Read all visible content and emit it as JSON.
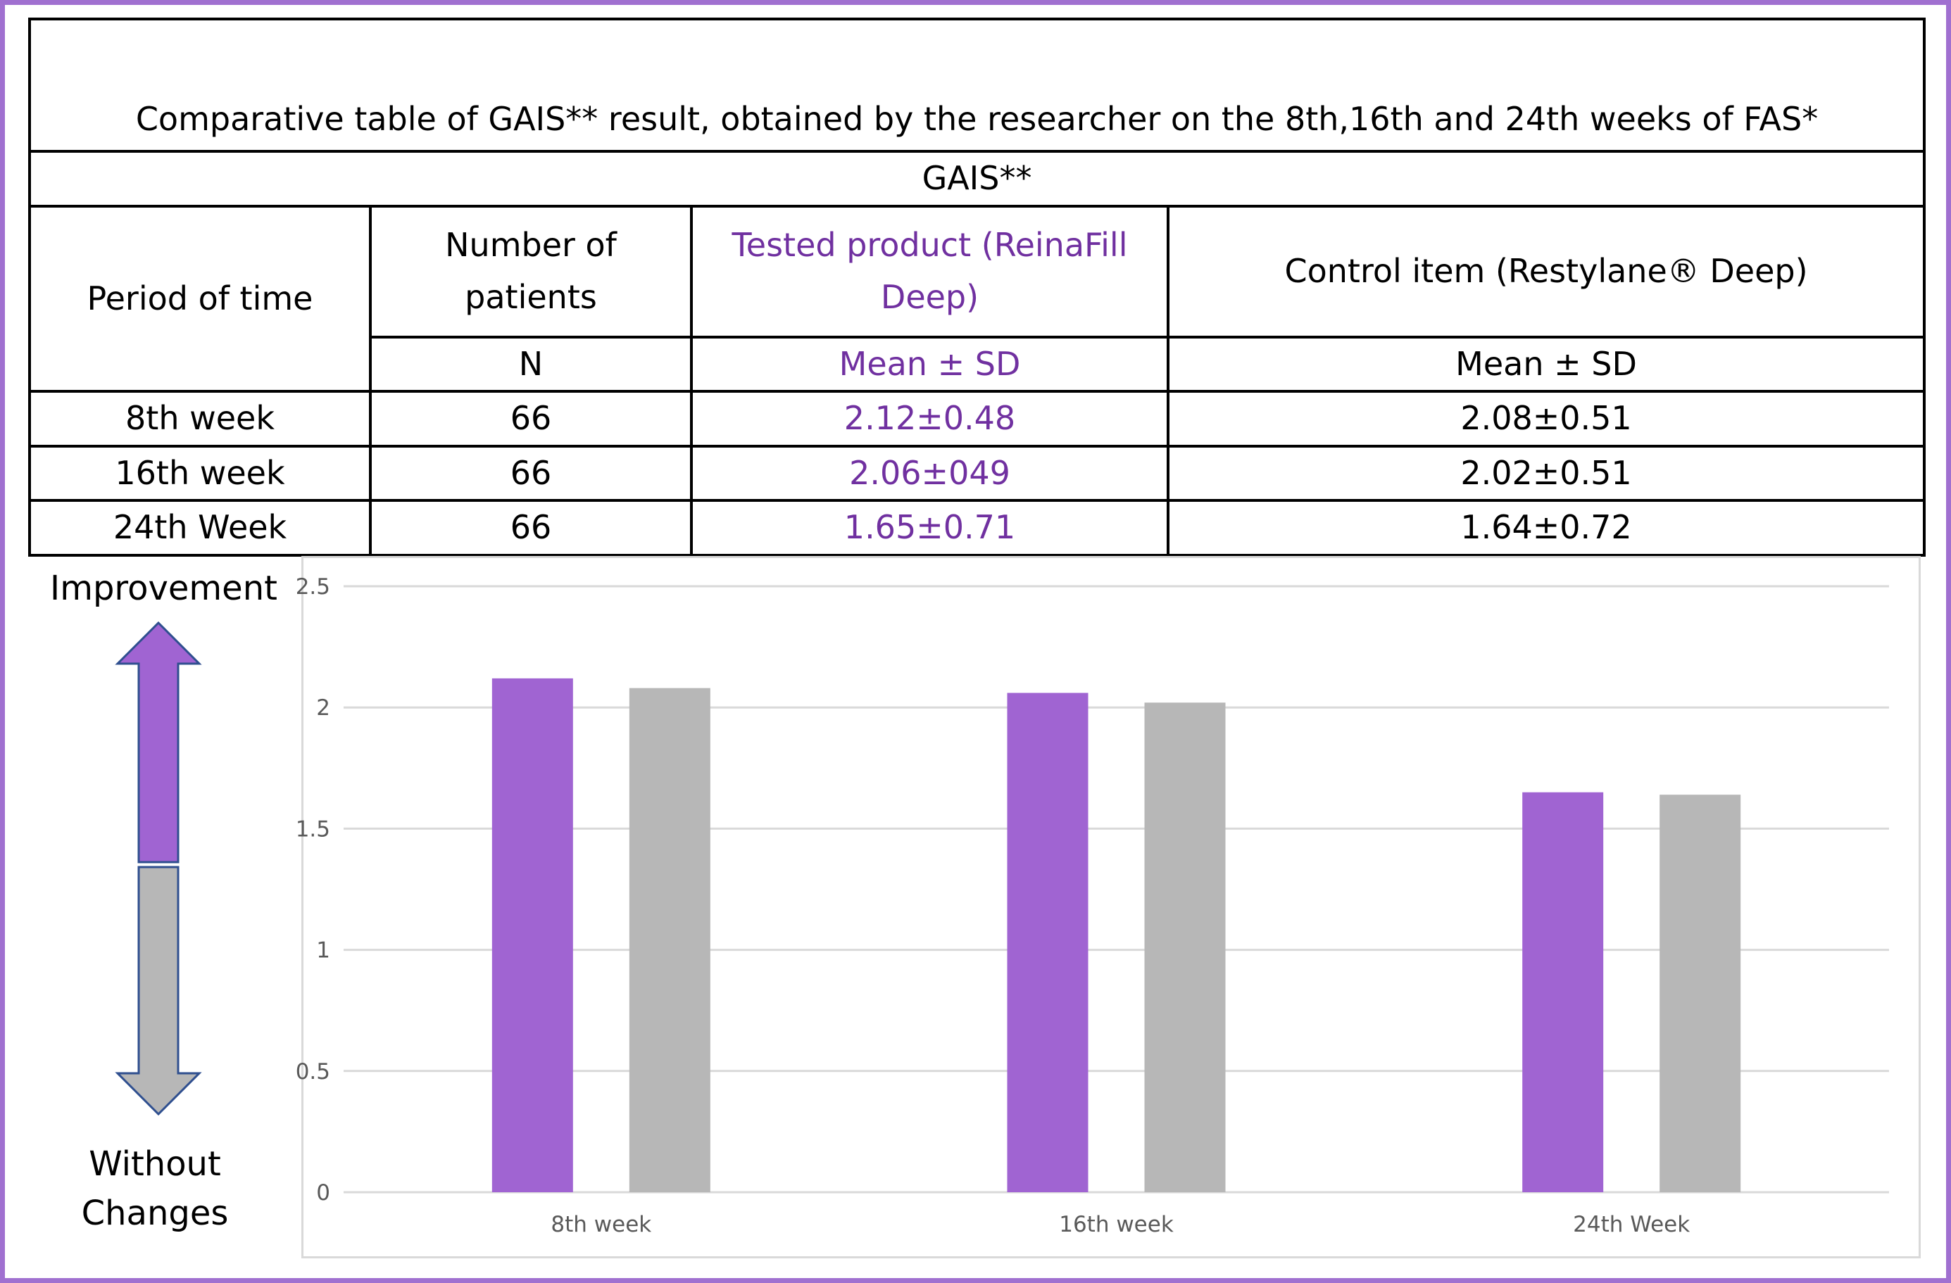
{
  "table": {
    "title": "Comparative table of GAIS** result, obtained by the researcher on the 8th,16th and 24th weeks of FAS*",
    "subtitle": "GAIS**",
    "headers": {
      "period": "Period of time",
      "patients": "Number of patients",
      "tested": "Tested product (ReinaFill Deep)",
      "control": "Control item (Restylane® Deep)"
    },
    "subheaders": {
      "patients": "N",
      "tested": "Mean ± SD",
      "control": "Mean ± SD"
    },
    "rows": [
      {
        "period": "8th week",
        "n": "66",
        "tested": "2.12±0.48",
        "control": "2.08±0.51"
      },
      {
        "period": "16th week",
        "n": "66",
        "tested": "2.06±049",
        "control": "2.02±0.51"
      },
      {
        "period": "24th Week",
        "n": "66",
        "tested": "1.65±0.71",
        "control": "1.64±0.72"
      }
    ]
  },
  "legend_arrow": {
    "top_label": "Improvement",
    "bottom_label_line1": "Without",
    "bottom_label_line2": "Changes",
    "top_color": "#a064d2",
    "bottom_color": "#b7b7b7",
    "outline_color": "#2f4f8f"
  },
  "chart_data": {
    "type": "bar",
    "categories": [
      "8th week",
      "16th week",
      "24th Week"
    ],
    "series": [
      {
        "values": [
          2.12,
          2.06,
          1.65
        ],
        "color": "#a064d2"
      },
      {
        "values": [
          2.08,
          2.02,
          1.64
        ],
        "color": "#b7b7b7"
      }
    ],
    "ylim": [
      0,
      2.5
    ],
    "yticks": [
      "0",
      "0.5",
      "1",
      "1.5",
      "2",
      "2.5"
    ],
    "grid": true,
    "legend": "none"
  }
}
